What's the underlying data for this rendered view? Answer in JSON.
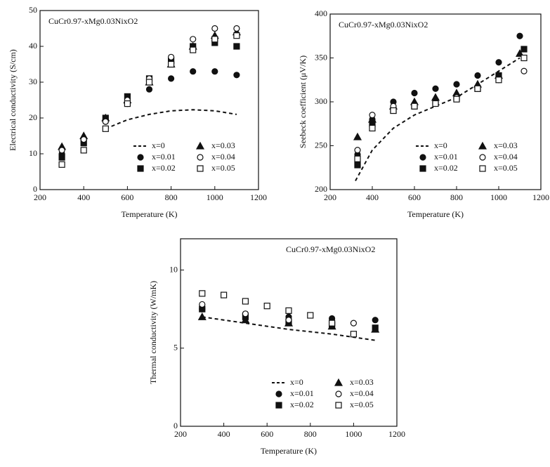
{
  "chart_data": [
    {
      "type": "scatter",
      "title": "CuCr0.97-xMg0.03NixO2",
      "x_label": "Temperature (K)",
      "y_label": "Electrical conductivity (S/cm)",
      "xlim": [
        200,
        1200
      ],
      "xticks": [
        200,
        400,
        600,
        800,
        1000,
        1200
      ],
      "ylim": [
        0,
        50
      ],
      "yticks": [
        0,
        10,
        20,
        30,
        40,
        50
      ],
      "legend": "lower-right",
      "series": [
        {
          "name": "x=0",
          "color": "#111111",
          "marker": "none",
          "dashed": true,
          "x": [
            500,
            600,
            700,
            800,
            900,
            1000,
            1100
          ],
          "values": [
            17,
            19.5,
            21,
            22,
            22.3,
            22,
            21
          ]
        },
        {
          "name": "x=0.01",
          "color": "#111111",
          "marker": "circle",
          "filled": true,
          "x": [
            300,
            400,
            500,
            600,
            700,
            800,
            900,
            1000,
            1100
          ],
          "values": [
            10,
            14,
            19,
            24,
            28,
            31,
            33,
            33,
            32
          ]
        },
        {
          "name": "x=0.02",
          "color": "#111111",
          "marker": "square",
          "filled": true,
          "x": [
            300,
            400,
            500,
            600,
            700,
            800,
            900,
            1000,
            1100
          ],
          "values": [
            9,
            13,
            20,
            26,
            31,
            36,
            40,
            41,
            40
          ]
        },
        {
          "name": "x=0.03",
          "color": "#111111",
          "marker": "triangle",
          "filled": true,
          "x": [
            300,
            400,
            500,
            600,
            700,
            800,
            900,
            1000,
            1100
          ],
          "values": [
            12,
            15,
            20,
            25,
            30,
            35,
            40,
            43,
            44
          ]
        },
        {
          "name": "x=0.04",
          "color": "#111111",
          "marker": "circle",
          "filled": false,
          "x": [
            300,
            400,
            500,
            600,
            700,
            800,
            900,
            1000,
            1100
          ],
          "values": [
            11,
            14,
            19,
            25,
            31,
            37,
            42,
            45,
            45
          ]
        },
        {
          "name": "x=0.05",
          "color": "#111111",
          "marker": "square",
          "filled": false,
          "x": [
            300,
            400,
            500,
            600,
            700,
            800,
            900,
            1000,
            1100
          ],
          "values": [
            7,
            11,
            17,
            24,
            30,
            35,
            39,
            42,
            43
          ]
        }
      ]
    },
    {
      "type": "scatter",
      "title": "CuCr0.97-xMg0.03NixO2",
      "x_label": "Temperature (K)",
      "y_label": "Seebeck coefficient (μV/K)",
      "xlim": [
        200,
        1200
      ],
      "xticks": [
        200,
        400,
        600,
        800,
        1000,
        1200
      ],
      "ylim": [
        200,
        400
      ],
      "yticks": [
        200,
        250,
        300,
        350,
        400
      ],
      "legend": "lower-right",
      "series": [
        {
          "name": "x=0",
          "color": "#111111",
          "marker": "none",
          "dashed": true,
          "x": [
            320,
            400,
            500,
            600,
            700,
            800,
            900,
            1000,
            1100
          ],
          "values": [
            210,
            245,
            270,
            285,
            295,
            305,
            320,
            335,
            350
          ]
        },
        {
          "name": "x=0.01",
          "color": "#111111",
          "marker": "circle",
          "filled": true,
          "x": [
            330,
            400,
            500,
            600,
            700,
            800,
            900,
            1000,
            1100
          ],
          "values": [
            240,
            280,
            300,
            310,
            315,
            320,
            330,
            345,
            375
          ]
        },
        {
          "name": "x=0.02",
          "color": "#111111",
          "marker": "square",
          "filled": true,
          "x": [
            330,
            400,
            500,
            600,
            700,
            800,
            900,
            1000,
            1120
          ],
          "values": [
            228,
            275,
            290,
            295,
            300,
            305,
            315,
            330,
            360
          ]
        },
        {
          "name": "x=0.03",
          "color": "#111111",
          "marker": "triangle",
          "filled": true,
          "x": [
            330,
            400,
            500,
            600,
            700,
            800,
            900,
            1000,
            1100
          ],
          "values": [
            260,
            280,
            295,
            300,
            305,
            310,
            320,
            330,
            355
          ]
        },
        {
          "name": "x=0.04",
          "color": "#111111",
          "marker": "circle",
          "filled": false,
          "x": [
            330,
            400,
            500,
            600,
            700,
            800,
            900,
            1000,
            1120
          ],
          "values": [
            245,
            285,
            295,
            295,
            298,
            305,
            315,
            325,
            335
          ]
        },
        {
          "name": "x=0.05",
          "color": "#111111",
          "marker": "square",
          "filled": false,
          "x": [
            330,
            400,
            500,
            600,
            700,
            800,
            900,
            1000,
            1120
          ],
          "values": [
            235,
            270,
            290,
            295,
            298,
            303,
            315,
            325,
            350
          ]
        }
      ]
    },
    {
      "type": "scatter",
      "title": "CuCr0.97-xMg0.03NixO2",
      "x_label": "Temperature (K)",
      "y_label": "Thermal conductivity (W/mK)",
      "xlim": [
        200,
        1200
      ],
      "xticks": [
        200,
        400,
        600,
        800,
        1000,
        1200
      ],
      "ylim": [
        0,
        12
      ],
      "yticks": [
        0,
        5,
        10
      ],
      "legend": "lower-right",
      "series": [
        {
          "name": "x=0",
          "color": "#111111",
          "marker": "none",
          "dashed": true,
          "x": [
            300,
            500,
            700,
            900,
            1100
          ],
          "values": [
            7.0,
            6.6,
            6.2,
            5.9,
            5.5
          ]
        },
        {
          "name": "x=0.01",
          "color": "#111111",
          "marker": "circle",
          "filled": true,
          "x": [
            300,
            500,
            700,
            900,
            1100
          ],
          "values": [
            7.5,
            7.2,
            7.0,
            6.9,
            6.8
          ]
        },
        {
          "name": "x=0.02",
          "color": "#111111",
          "marker": "square",
          "filled": true,
          "x": [
            300,
            500,
            700,
            900,
            1100
          ],
          "values": [
            7.5,
            7.0,
            6.7,
            6.5,
            6.3
          ]
        },
        {
          "name": "x=0.03",
          "color": "#111111",
          "marker": "triangle",
          "filled": true,
          "x": [
            300,
            500,
            700,
            900,
            1100
          ],
          "values": [
            7.0,
            6.8,
            6.6,
            6.4,
            6.2
          ]
        },
        {
          "name": "x=0.04",
          "color": "#111111",
          "marker": "circle",
          "filled": false,
          "x": [
            300,
            500,
            700,
            900,
            1000
          ],
          "values": [
            7.8,
            7.2,
            6.8,
            6.6,
            6.6
          ]
        },
        {
          "name": "x=0.05",
          "color": "#111111",
          "marker": "square",
          "filled": false,
          "x": [
            300,
            400,
            500,
            600,
            700,
            800,
            900,
            1000
          ],
          "values": [
            8.5,
            8.4,
            8.0,
            7.7,
            7.4,
            7.1,
            6.6,
            5.9
          ]
        }
      ]
    }
  ]
}
